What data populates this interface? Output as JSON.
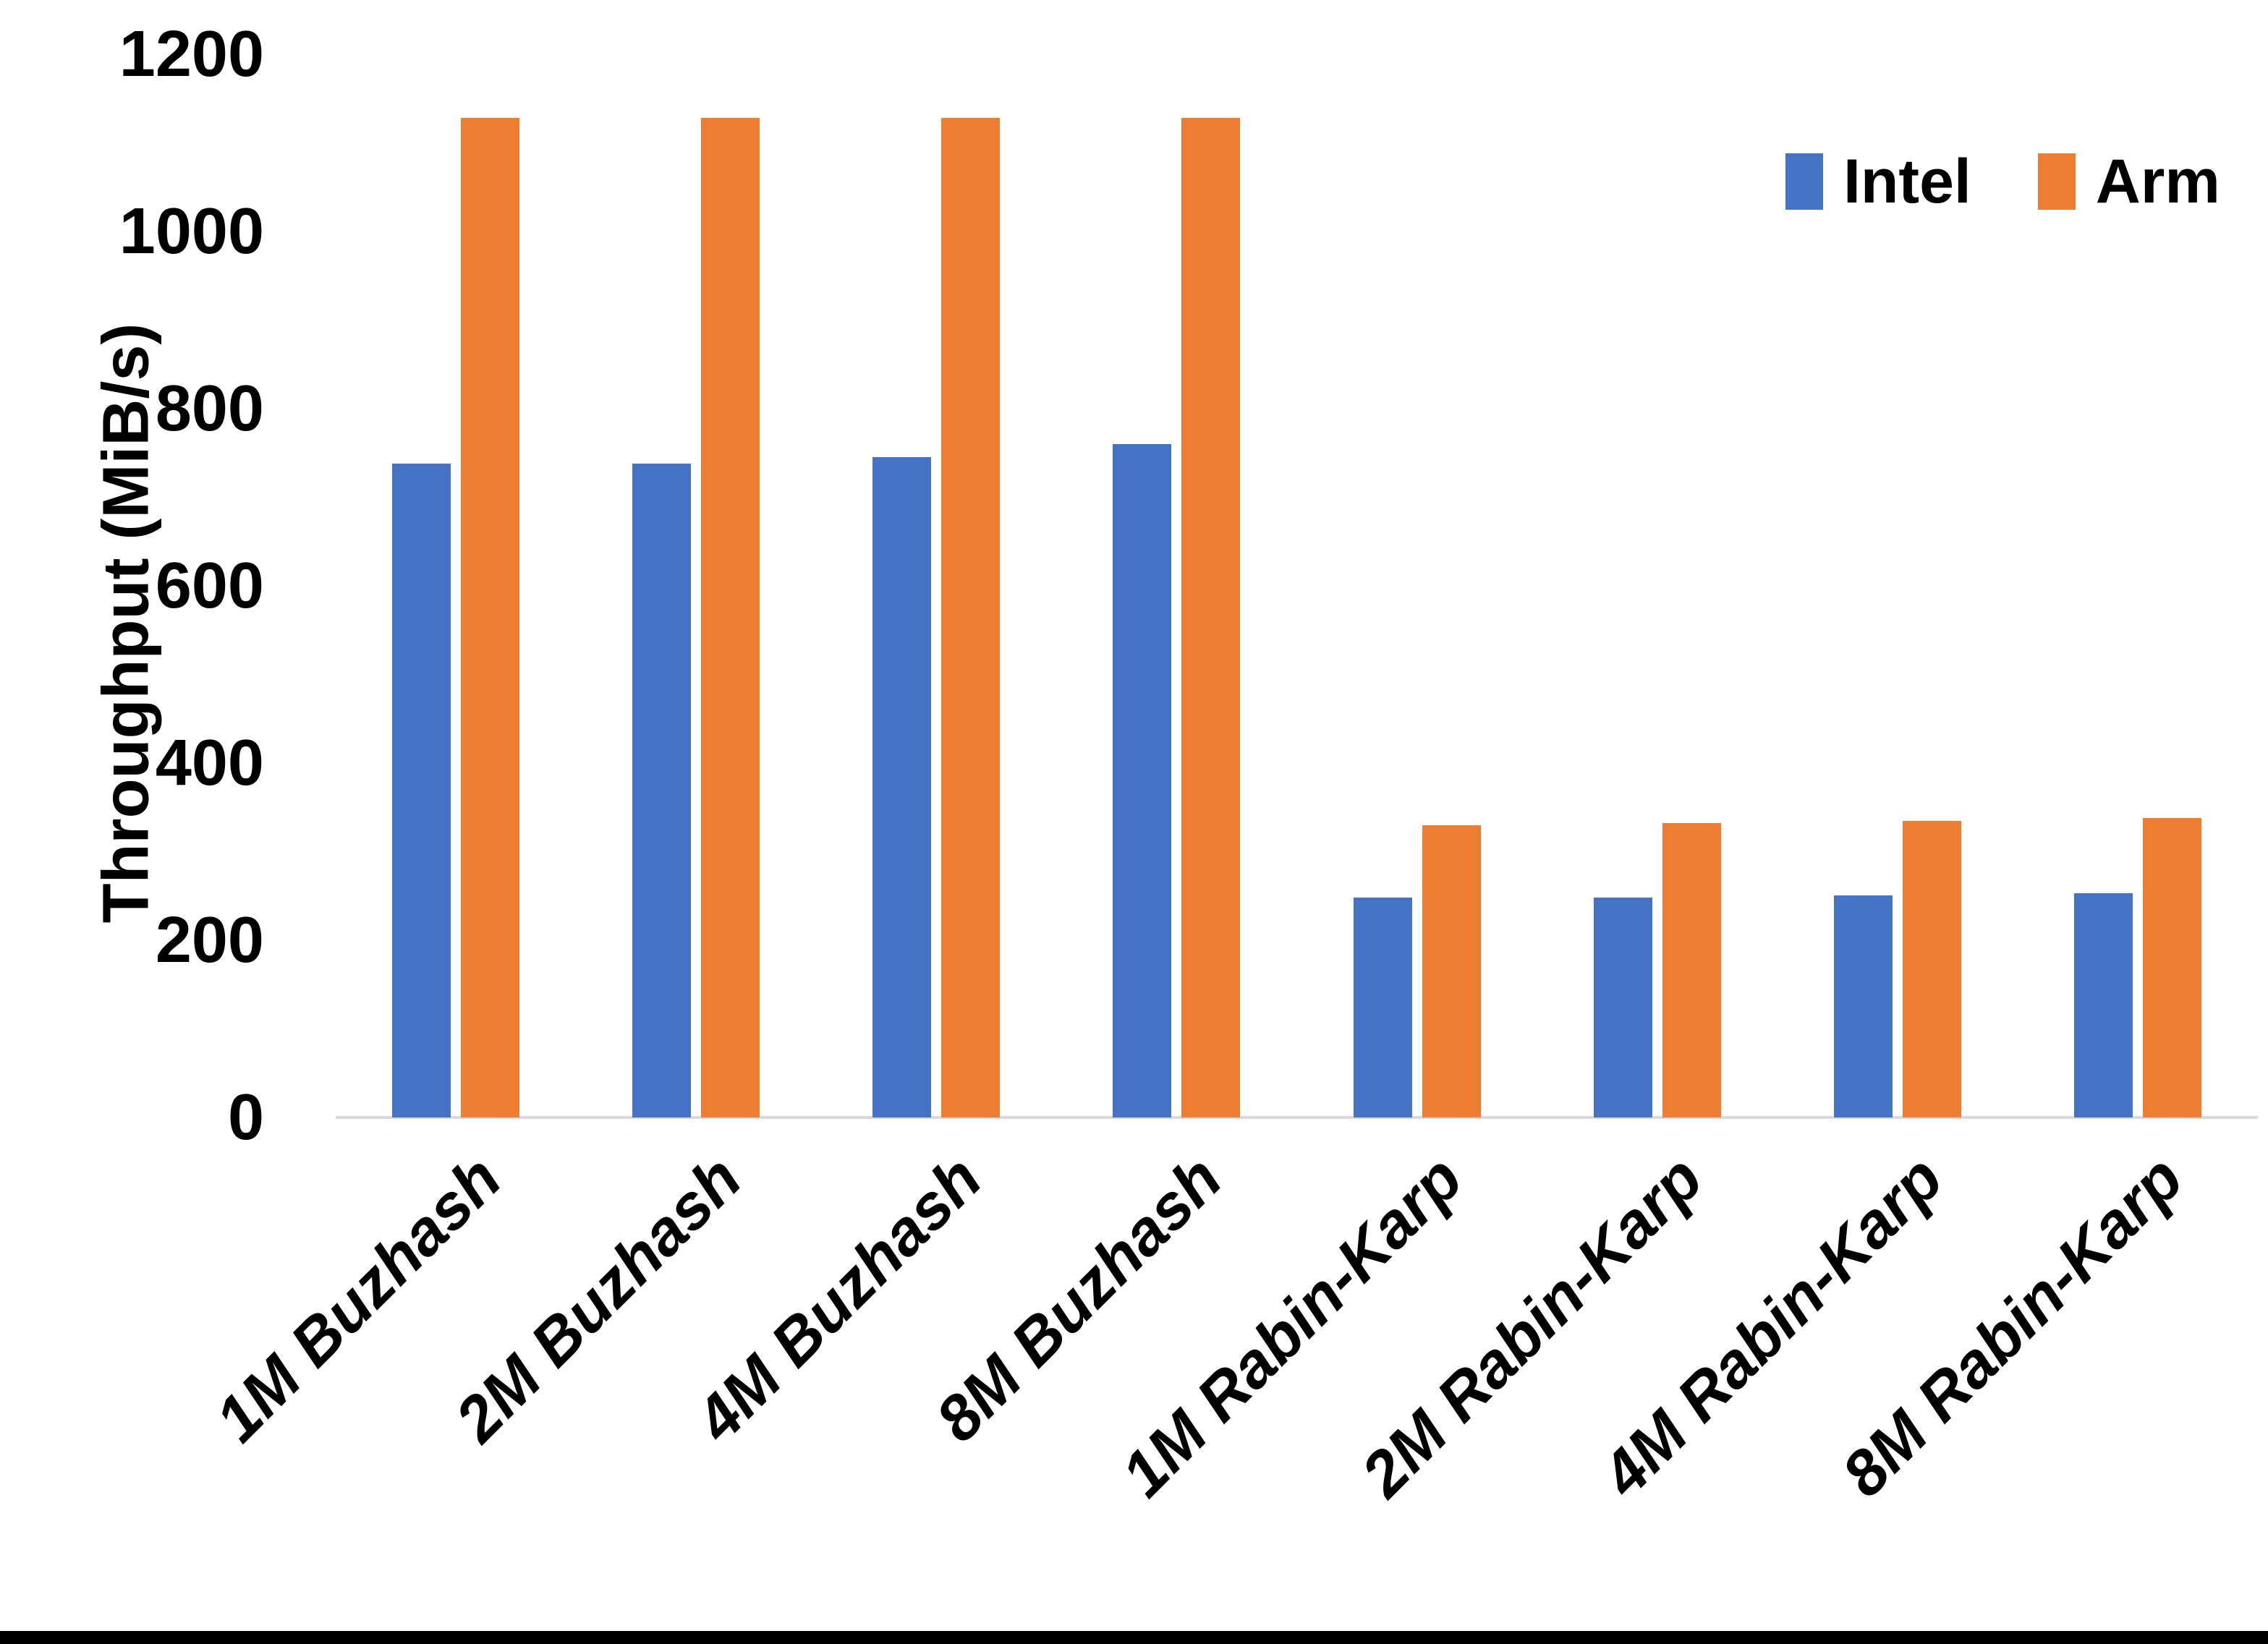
{
  "chart_data": {
    "type": "bar",
    "title": "",
    "categories": [
      "1M Buzhash",
      "2M Buzhash",
      "4M Buzhash",
      "8M Buzhash",
      "1M Rabin-Karp",
      "2M Rabin-Karp",
      "4M Rabin-Karp",
      "8M Rabin-Karp"
    ],
    "series": [
      {
        "name": "Intel",
        "color": "#4472C4",
        "values": [
          738,
          738,
          745,
          760,
          248,
          248,
          251,
          253
        ]
      },
      {
        "name": "Arm",
        "color": "#ED7D31",
        "values": [
          1128,
          1128,
          1128,
          1128,
          330,
          332,
          335,
          338
        ]
      }
    ],
    "xlabel": "",
    "ylabel": "Throughput (MiB/s)",
    "ylim": [
      0,
      1200
    ],
    "yticks": [
      0,
      200,
      400,
      600,
      800,
      1000,
      1200
    ],
    "grid": false,
    "legend_position": "top-right",
    "axis_line_color": "#d9d9d9",
    "text_color": "#000000"
  }
}
